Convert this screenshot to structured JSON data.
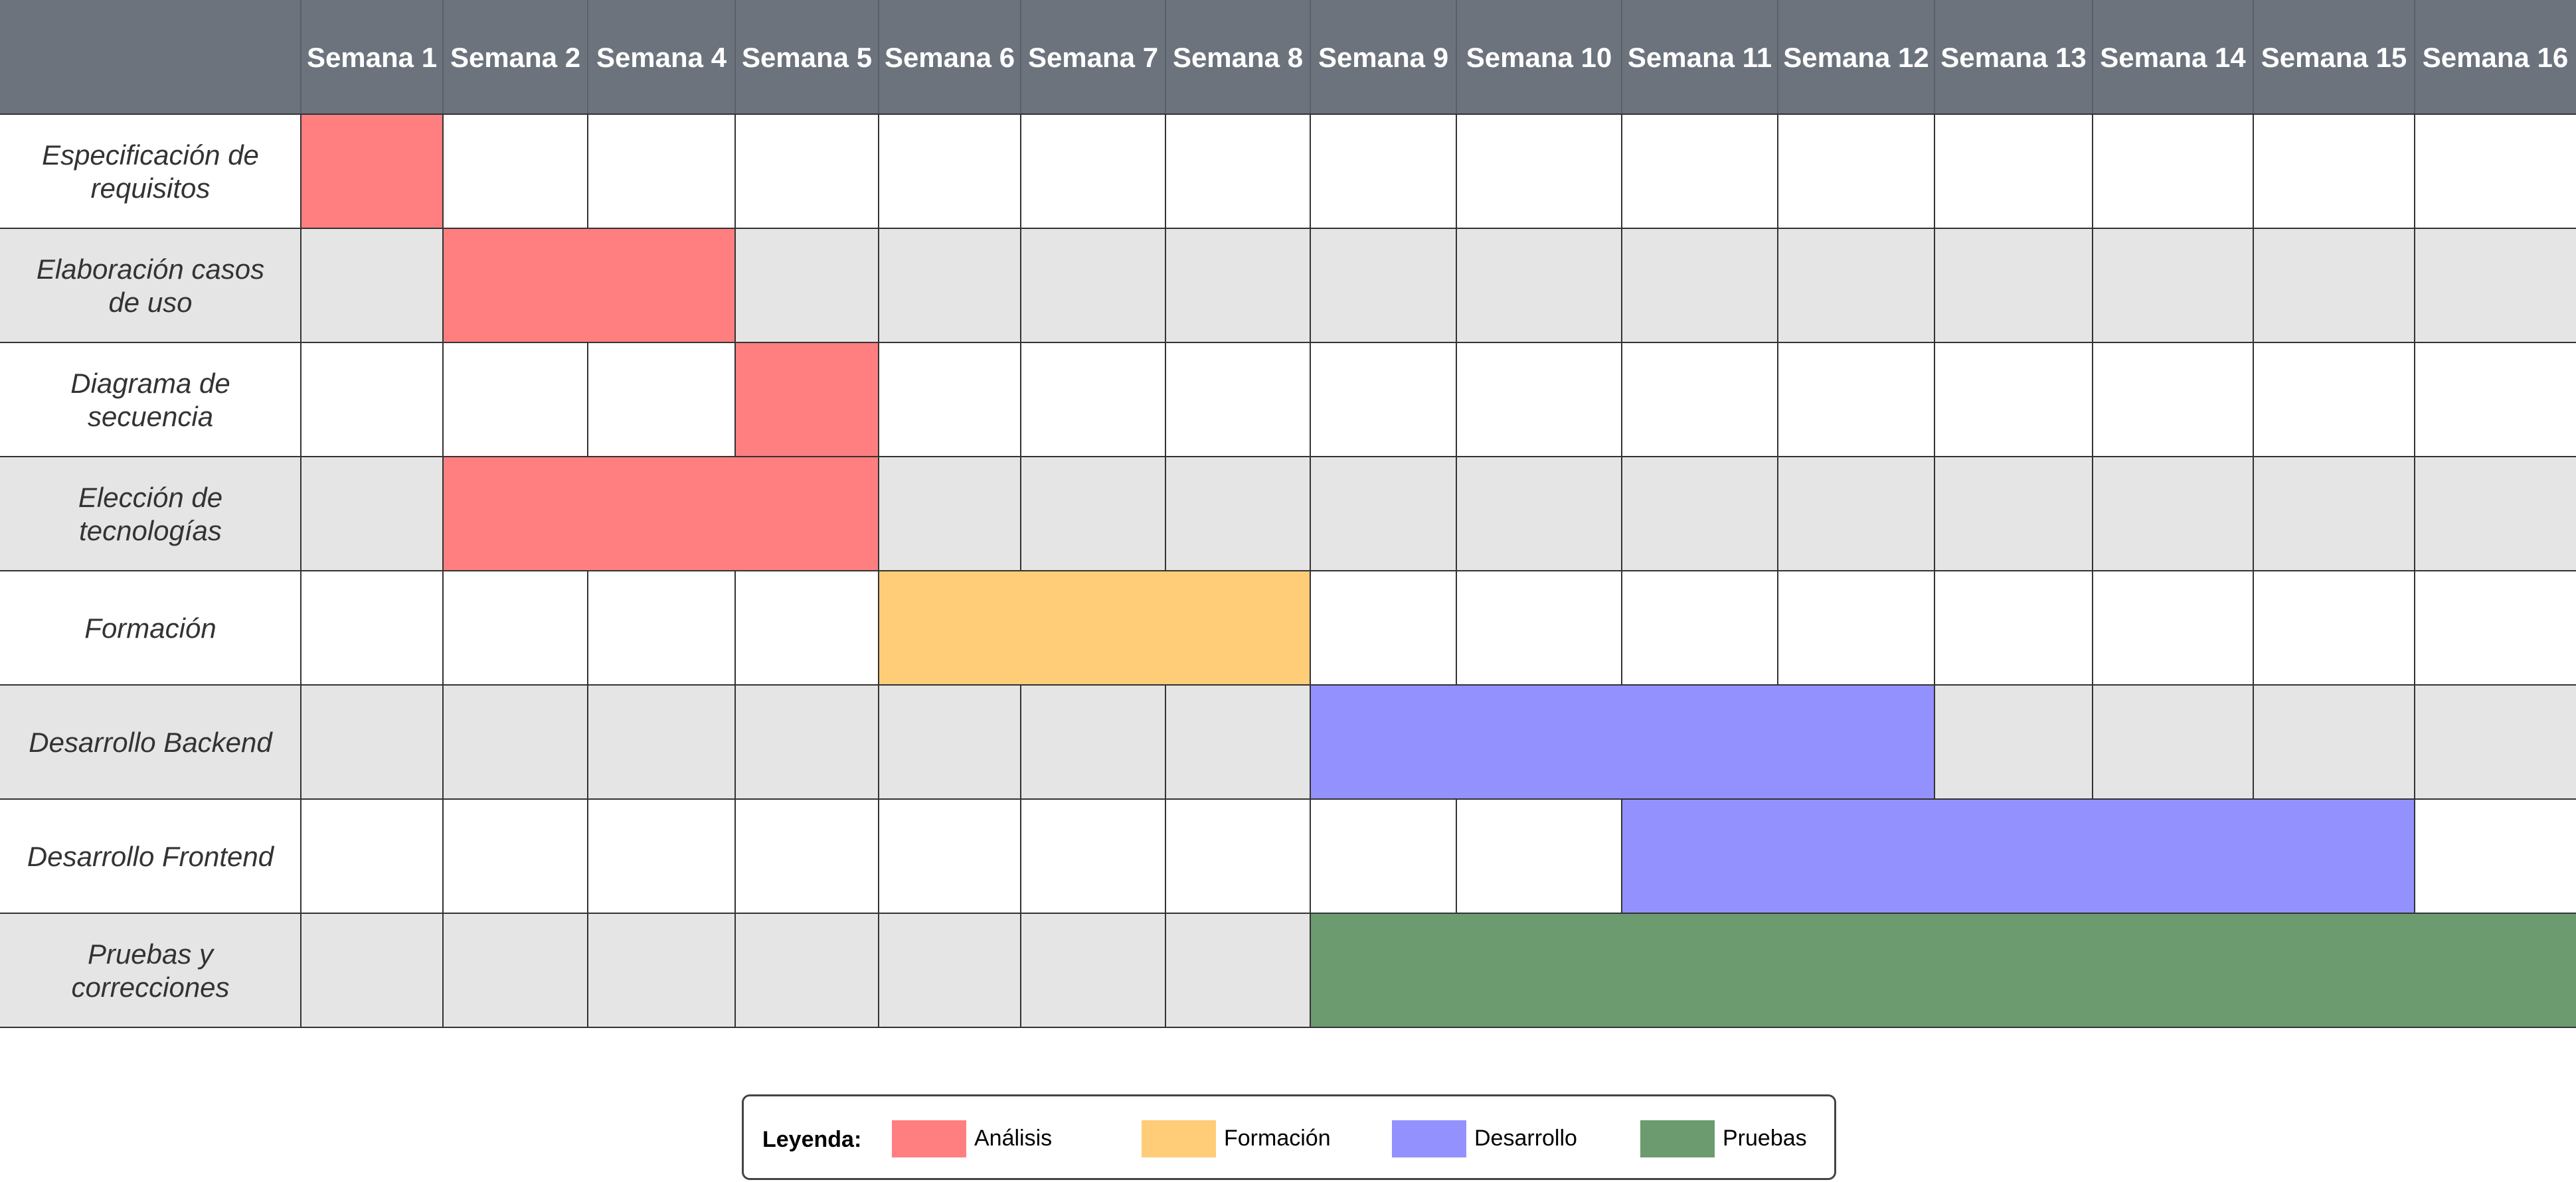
{
  "colors": {
    "header_bg": "#6c737d",
    "row_alt_bg": "#e5e5e5",
    "row_bg": "#ffffff",
    "grid_line": "#333333"
  },
  "chart_data": {
    "type": "table",
    "weeks": [
      "Semana 1",
      "Semana 2",
      "Semana 4",
      "Semana 5",
      "Semana 6",
      "Semana 7",
      "Semana 8",
      "Semana 9",
      "Semana 10",
      "Semana 11",
      "Semana 12",
      "Semana 13",
      "Semana 14",
      "Semana 15",
      "Semana 16"
    ],
    "tasks": [
      {
        "lines": [
          "Especificación de",
          "requisitos"
        ],
        "start": "Semana 1",
        "end": "Semana 1",
        "category": "Análisis"
      },
      {
        "lines": [
          "Elaboración casos",
          "de uso"
        ],
        "start": "Semana 2",
        "end": "Semana 4",
        "category": "Análisis"
      },
      {
        "lines": [
          "Diagrama de",
          "secuencia"
        ],
        "start": "Semana 5",
        "end": "Semana 5",
        "category": "Análisis"
      },
      {
        "lines": [
          "Elección de",
          "tecnologías"
        ],
        "start": "Semana 2",
        "end": "Semana 5",
        "category": "Análisis"
      },
      {
        "lines": [
          "Formación"
        ],
        "start": "Semana 6",
        "end": "Semana 8",
        "category": "Formación"
      },
      {
        "lines": [
          "Desarrollo Backend"
        ],
        "start": "Semana 9",
        "end": "Semana 12",
        "category": "Desarrollo"
      },
      {
        "lines": [
          "Desarrollo Frontend"
        ],
        "start": "Semana 11",
        "end": "Semana 15",
        "category": "Desarrollo"
      },
      {
        "lines": [
          "Pruebas y",
          "correcciones"
        ],
        "start": "Semana 9",
        "end": "Semana 16",
        "category": "Pruebas"
      }
    ],
    "legend": {
      "title": "Leyenda:",
      "items": [
        {
          "label": "Análisis",
          "color": "#ff7f80"
        },
        {
          "label": "Formación",
          "color": "#ffcc77"
        },
        {
          "label": "Desarrollo",
          "color": "#9391fe"
        },
        {
          "label": "Pruebas",
          "color": "#6b9b6f"
        }
      ]
    }
  }
}
